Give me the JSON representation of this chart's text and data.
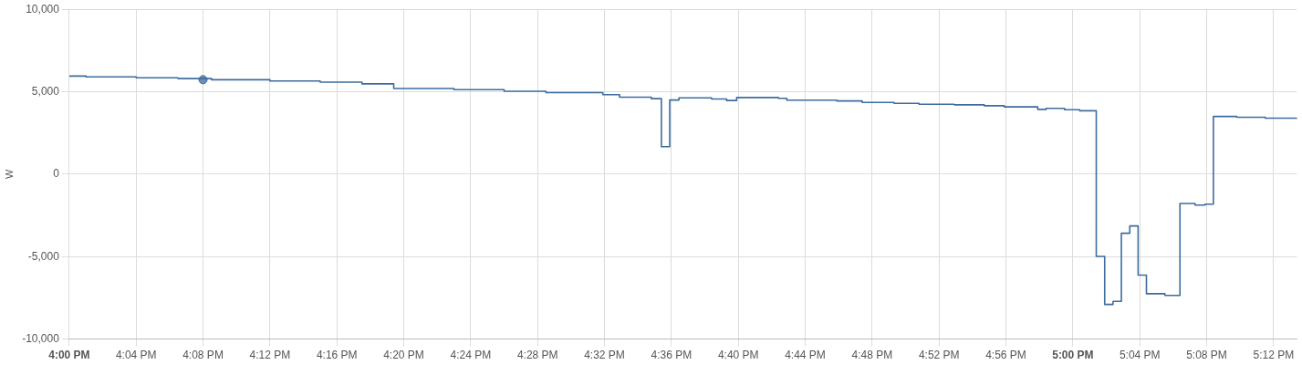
{
  "chart_data": {
    "type": "step",
    "ylabel": "W",
    "xlim": [
      16,
      17.2233
    ],
    "ylim": [
      -10000,
      10000
    ],
    "grid": true,
    "legend": false,
    "marker": "none",
    "line_style": "solid",
    "yticks": [
      {
        "value": -10000,
        "label": "-10,000"
      },
      {
        "value": -5000,
        "label": "-5,000"
      },
      0,
      {
        "value": 5000,
        "label": "5,000"
      },
      {
        "value": 10000,
        "label": "10,000"
      }
    ],
    "xticks": [
      {
        "value": 16,
        "label": "4:00 PM"
      },
      {
        "value": 16.0667,
        "label": "4:04 PM"
      },
      {
        "value": 16.1333,
        "label": "4:08 PM"
      },
      {
        "value": 16.2,
        "label": "4:12 PM"
      },
      {
        "value": 16.2667,
        "label": "4:16 PM"
      },
      {
        "value": 16.3333,
        "label": "4:20 PM"
      },
      {
        "value": 16.4,
        "label": "4:24 PM"
      },
      {
        "value": 16.4667,
        "label": "4:28 PM"
      },
      {
        "value": 16.5333,
        "label": "4:32 PM"
      },
      {
        "value": 16.6,
        "label": "4:36 PM"
      },
      {
        "value": 16.6667,
        "label": "4:40 PM"
      },
      {
        "value": 16.7333,
        "label": "4:44 PM"
      },
      {
        "value": 16.8,
        "label": "4:48 PM"
      },
      {
        "value": 16.8667,
        "label": "4:52 PM"
      },
      {
        "value": 16.9333,
        "label": "4:56 PM"
      },
      {
        "value": 17,
        "label": "5:00 PM"
      },
      {
        "value": 17.0667,
        "label": "5:04 PM"
      },
      {
        "value": 17.1333,
        "label": "5:08 PM"
      },
      {
        "value": 17.2,
        "label": "5:12 PM"
      }
    ],
    "series": [
      {
        "color": "#3e6c9e",
        "x": [
          16,
          16.0167,
          16.0667,
          16.1083,
          16.1417,
          16.2,
          16.25,
          16.2917,
          16.3233,
          16.3833,
          16.4333,
          16.475,
          16.5317,
          16.5483,
          16.58,
          16.59,
          16.5983,
          16.6075,
          16.64,
          16.655,
          16.665,
          16.7067,
          16.715,
          16.765,
          16.79,
          16.8217,
          16.8467,
          16.8817,
          16.9117,
          16.9317,
          16.965,
          16.9733,
          16.9917,
          17.0067,
          17.0233,
          17.0317,
          17.04,
          17.0483,
          17.0567,
          17.065,
          17.0733,
          17.0917,
          17.1067,
          17.1217,
          17.1317,
          17.14,
          17.1633,
          17.1917,
          17.2233
        ],
        "values": [
          5950,
          5900,
          5850,
          5800,
          5730,
          5650,
          5580,
          5480,
          5200,
          5130,
          5030,
          4950,
          4820,
          4670,
          4580,
          1670,
          4500,
          4630,
          4560,
          4470,
          4650,
          4600,
          4490,
          4440,
          4350,
          4300,
          4240,
          4210,
          4150,
          4080,
          3930,
          3990,
          3910,
          3850,
          -4990,
          -7900,
          -7710,
          -3580,
          -3140,
          -6120,
          -7250,
          -7350,
          -1780,
          -1870,
          -1820,
          3500,
          3450,
          3400,
          3340
        ]
      },
      {
        "type": "scatter",
        "color": "#6b8fb8",
        "marker": "circle",
        "x": [
          16.1333
        ],
        "values": [
          5730
        ]
      }
    ]
  }
}
